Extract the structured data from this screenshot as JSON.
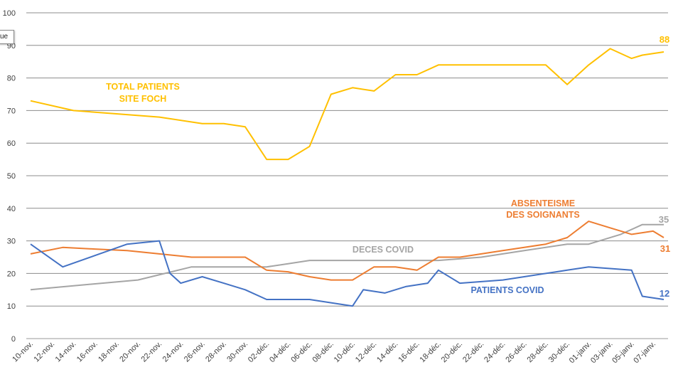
{
  "tooltip": {
    "text": "ue"
  },
  "chart_data": {
    "type": "line",
    "ylim": [
      0,
      100
    ],
    "yticks": [
      0,
      10,
      20,
      30,
      40,
      50,
      60,
      70,
      80,
      90,
      100
    ],
    "grid": true,
    "legend": "none",
    "xticklabels": [
      "10-nov.",
      "12-nov.",
      "14-nov.",
      "16-nov.",
      "18-nov.",
      "20-nov.",
      "22-nov.",
      "24-nov.",
      "26-nov.",
      "28-nov.",
      "30-nov.",
      "02-déc.",
      "04-déc.",
      "06-déc.",
      "08-déc.",
      "10-déc.",
      "12-déc.",
      "14-déc.",
      "16-déc.",
      "18-déc.",
      "20-déc.",
      "22-déc.",
      "24-déc.",
      "26-déc.",
      "28-déc.",
      "30-déc.",
      "01-janv.",
      "03-janv.",
      "05-janv.",
      "07-janv."
    ],
    "x_domain": [
      0,
      59
    ],
    "series": [
      {
        "name": "TOTAL PATIENTS SITE FOCH",
        "color": "#FFC000",
        "end_label": "88",
        "x": [
          0,
          4,
          8,
          12,
          16,
          18,
          20,
          22,
          24,
          26,
          28,
          30,
          32,
          34,
          36,
          38,
          40,
          42,
          44,
          46,
          48,
          50,
          52,
          54,
          56,
          57,
          59
        ],
        "values": [
          73,
          70,
          69,
          68,
          66,
          66,
          65,
          55,
          55,
          59,
          75,
          77,
          76,
          81,
          81,
          84,
          84,
          84,
          84,
          84,
          84,
          78,
          84,
          89,
          86,
          87,
          88
        ]
      },
      {
        "name": "ABSENTEISME DES SOIGNANTS",
        "color": "#ED7D31",
        "end_label": "31",
        "x": [
          0,
          3,
          6,
          9,
          12,
          15,
          18,
          20,
          22,
          24,
          26,
          28,
          30,
          32,
          34,
          36,
          38,
          40,
          42,
          44,
          46,
          48,
          50,
          52,
          54,
          56,
          58,
          59
        ],
        "values": [
          26,
          28,
          27.5,
          27,
          26,
          25,
          25,
          25,
          21,
          20.5,
          19,
          18,
          18,
          22,
          22,
          21,
          25,
          25,
          26,
          27,
          28,
          29,
          31,
          36,
          34,
          32,
          33,
          31
        ]
      },
      {
        "name": "DECES COVID",
        "color": "#A5A5A5",
        "end_label": "35",
        "x": [
          0,
          5,
          10,
          15,
          18,
          20,
          22,
          24,
          26,
          30,
          34,
          38,
          42,
          46,
          50,
          52,
          55,
          57,
          59
        ],
        "values": [
          15,
          16.5,
          18,
          22,
          22,
          22,
          22,
          23,
          24,
          24,
          24,
          24,
          25,
          27,
          29,
          29,
          32,
          35,
          35
        ]
      },
      {
        "name": "PATIENTS COVID",
        "color": "#4472C4",
        "end_label": "12",
        "x": [
          0,
          3,
          6,
          9,
          12,
          13,
          14,
          16,
          18,
          20,
          22,
          24,
          26,
          28,
          30,
          31,
          33,
          35,
          37,
          38,
          40,
          42,
          44,
          46,
          48,
          50,
          52,
          54,
          56,
          57,
          59
        ],
        "values": [
          29,
          22,
          25.5,
          29,
          30,
          20,
          17,
          19,
          17,
          15,
          12,
          12,
          12,
          11,
          10,
          15,
          14,
          16,
          17,
          21,
          17,
          17.5,
          18,
          19,
          20,
          21,
          22,
          21.5,
          21,
          13,
          12
        ]
      }
    ]
  }
}
